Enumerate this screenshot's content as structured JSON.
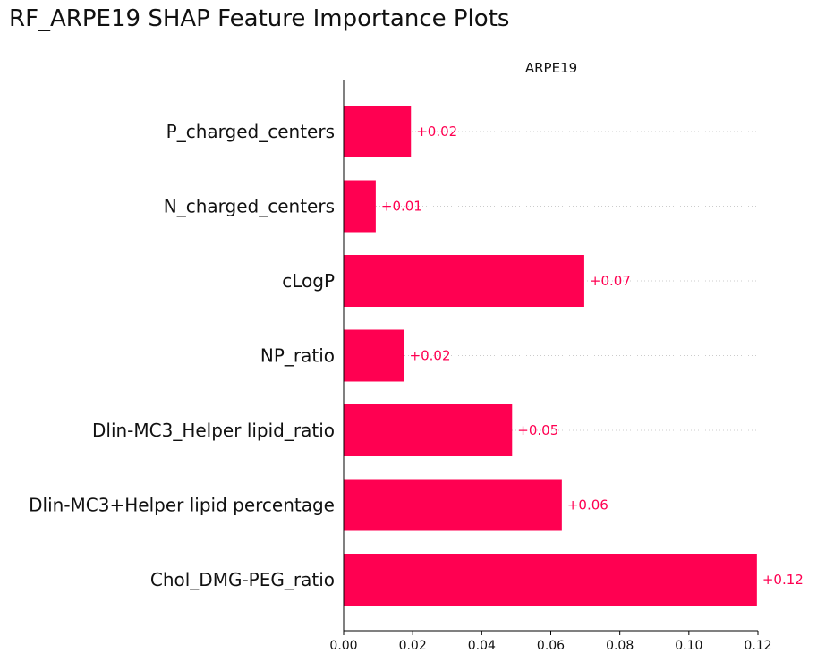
{
  "page": {
    "title": "RF_ARPE19 SHAP Feature Importance Plots"
  },
  "chart_data": {
    "type": "bar",
    "orientation": "horizontal",
    "title": "ARPE19",
    "categories": [
      "P_charged_centers",
      "N_charged_centers",
      "cLogP",
      "NP_ratio",
      "Dlin-MC3_Helper lipid_ratio",
      "Dlin-MC3+Helper lipid percentage",
      "Chol_DMG-PEG_ratio"
    ],
    "values": [
      0.0195,
      0.0093,
      0.0697,
      0.0175,
      0.0488,
      0.0632,
      0.1197
    ],
    "value_labels": [
      "+0.02",
      "+0.01",
      "+0.07",
      "+0.02",
      "+0.05",
      "+0.06",
      "+0.12"
    ],
    "xlim": [
      0,
      0.12
    ],
    "xticks": [
      0.0,
      0.02,
      0.04,
      0.06,
      0.08,
      0.1,
      0.12
    ],
    "xtick_labels": [
      "0.00",
      "0.02",
      "0.04",
      "0.06",
      "0.08",
      "0.10",
      "0.12"
    ],
    "xlabel": "",
    "ylabel": "",
    "grid": "dotted horizontal guide per row",
    "legend": "none",
    "colors": {
      "bar": "#ff0051",
      "value_label": "#ff0051",
      "guide": "#cccccc",
      "axis": "#000000"
    }
  }
}
